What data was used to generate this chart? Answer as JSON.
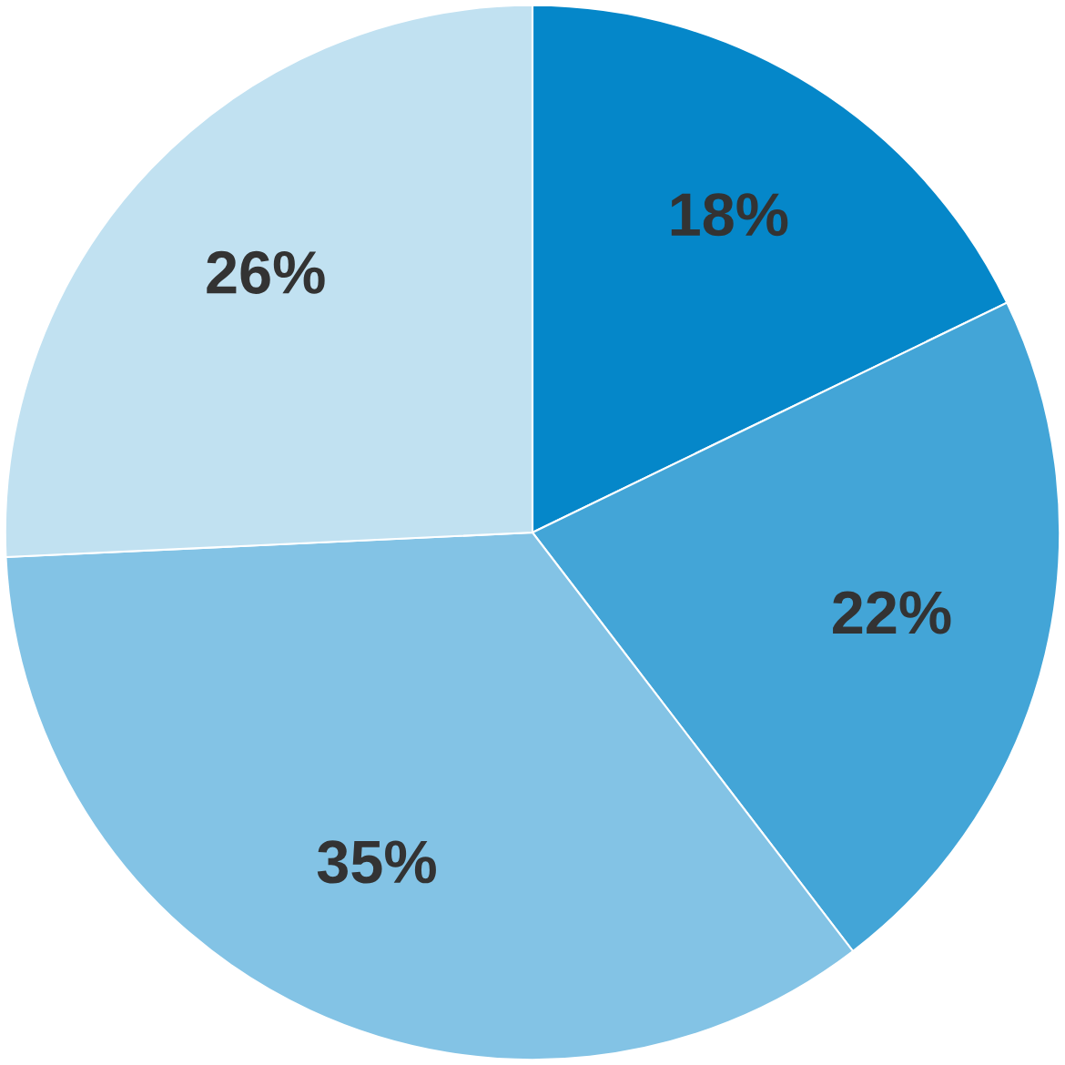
{
  "chart_data": {
    "type": "pie",
    "categories": [
      null,
      null,
      null,
      null
    ],
    "values": [
      18,
      22,
      35,
      26
    ],
    "colors": [
      "#0587c9",
      "#43a5d7",
      "#83c3e5",
      "#c1e1f1"
    ],
    "value_labels": [
      "18%",
      "22%",
      "35%",
      "26%"
    ]
  }
}
